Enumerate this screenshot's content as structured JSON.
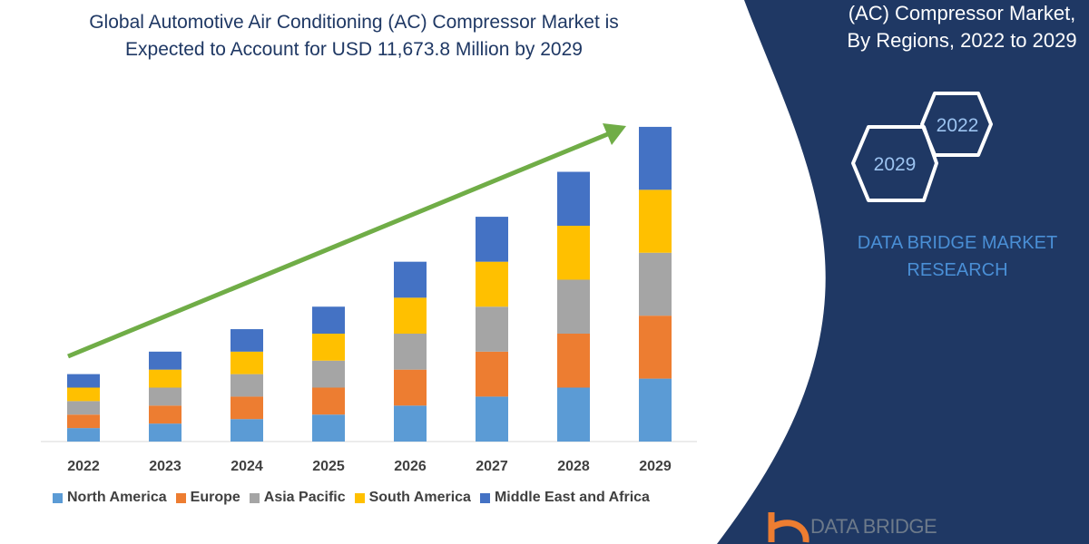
{
  "title_lines": [
    "Global Automotive Air Conditioning (AC) Compressor Market is",
    "Expected to Account for USD 11,673.8 Million by 2029"
  ],
  "side_panel": {
    "title_lines": [
      "(AC) Compressor Market,",
      "By Regions, 2022 to 2029"
    ],
    "hex_labels": [
      "2022",
      "2029"
    ],
    "brand_lines": [
      "DATA BRIDGE MARKET",
      "RESEARCH"
    ],
    "logo_text": "DATA BRIDGE",
    "background": "#1f3864"
  },
  "chart_data": {
    "type": "bar",
    "stacked": true,
    "categories": [
      "2022",
      "2023",
      "2024",
      "2025",
      "2026",
      "2027",
      "2028",
      "2029"
    ],
    "series": [
      {
        "name": "North America",
        "color": "#5b9bd5",
        "values": [
          15,
          20,
          25,
          30,
          40,
          50,
          60,
          70
        ]
      },
      {
        "name": "Europe",
        "color": "#ed7d31",
        "values": [
          15,
          20,
          25,
          30,
          40,
          50,
          60,
          70
        ]
      },
      {
        "name": "Asia Pacific",
        "color": "#a5a5a5",
        "values": [
          15,
          20,
          25,
          30,
          40,
          50,
          60,
          70
        ]
      },
      {
        "name": "South America",
        "color": "#ffc000",
        "values": [
          15,
          20,
          25,
          30,
          40,
          50,
          60,
          70
        ]
      },
      {
        "name": "Middle East and Africa",
        "color": "#4472c4",
        "values": [
          15,
          20,
          25,
          30,
          40,
          50,
          60,
          70
        ]
      }
    ],
    "ylim": [
      0,
      360
    ],
    "grid": false,
    "legend_position": "bottom",
    "trend_arrow_color": "#70ad47"
  }
}
